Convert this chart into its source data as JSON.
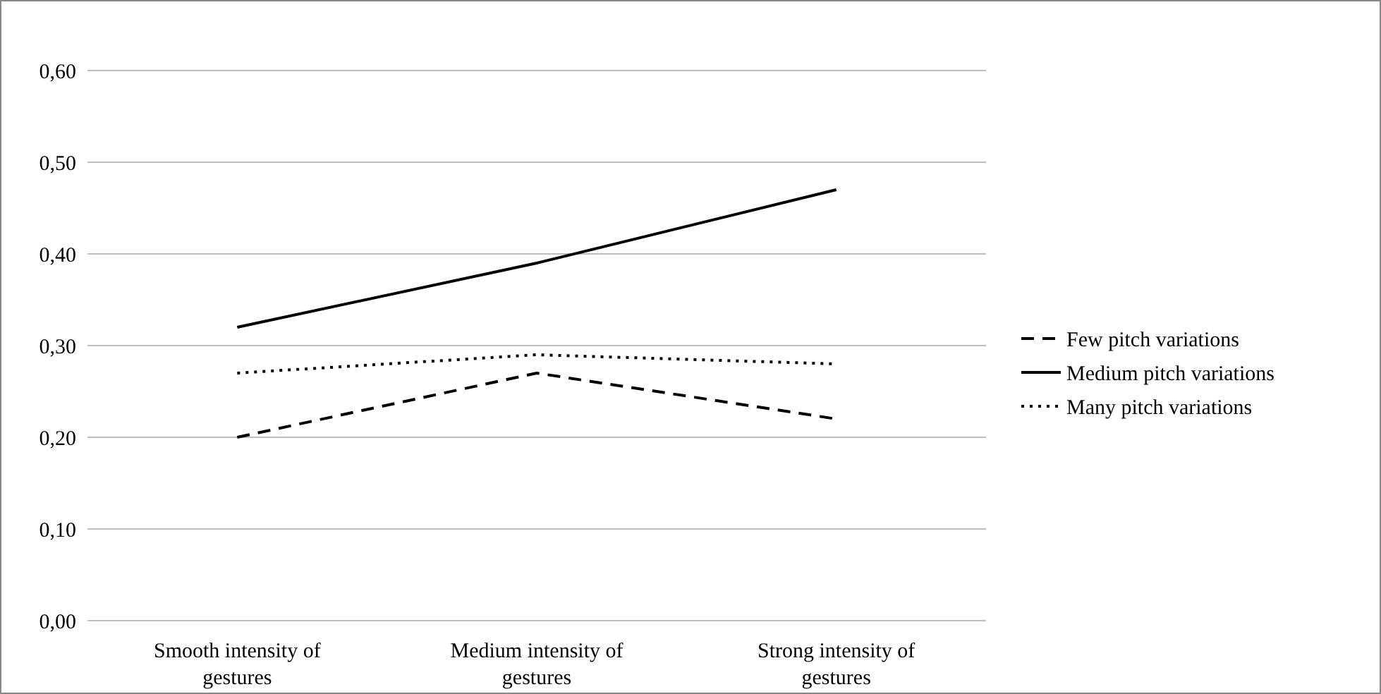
{
  "chart_data": {
    "type": "line",
    "categories": [
      "Smooth intensity of gestures",
      "Medium intensity of gestures",
      "Strong intensity of gestures"
    ],
    "series": [
      {
        "name": "Few pitch variations",
        "color": "#000000",
        "line_style": "dashed",
        "values": [
          0.2,
          0.27,
          0.22
        ]
      },
      {
        "name": "Medium pitch variations",
        "color": "#000000",
        "line_style": "solid",
        "values": [
          0.32,
          0.39,
          0.47
        ]
      },
      {
        "name": "Many pitch variations",
        "color": "#000000",
        "line_style": "dotted",
        "values": [
          0.27,
          0.29,
          0.28
        ]
      }
    ],
    "ylim": [
      0,
      0.6
    ],
    "yticks": [
      {
        "value": 0,
        "label": "0,00"
      },
      {
        "value": 0.1,
        "label": "0,10"
      },
      {
        "value": 0.2,
        "label": "0,20"
      },
      {
        "value": 0.3,
        "label": "0,30"
      },
      {
        "value": 0.4,
        "label": "0,40"
      },
      {
        "value": 0.5,
        "label": "0,50"
      },
      {
        "value": 0.6,
        "label": "0,60"
      }
    ],
    "grid": "y",
    "legend": "right",
    "marker": "none"
  }
}
